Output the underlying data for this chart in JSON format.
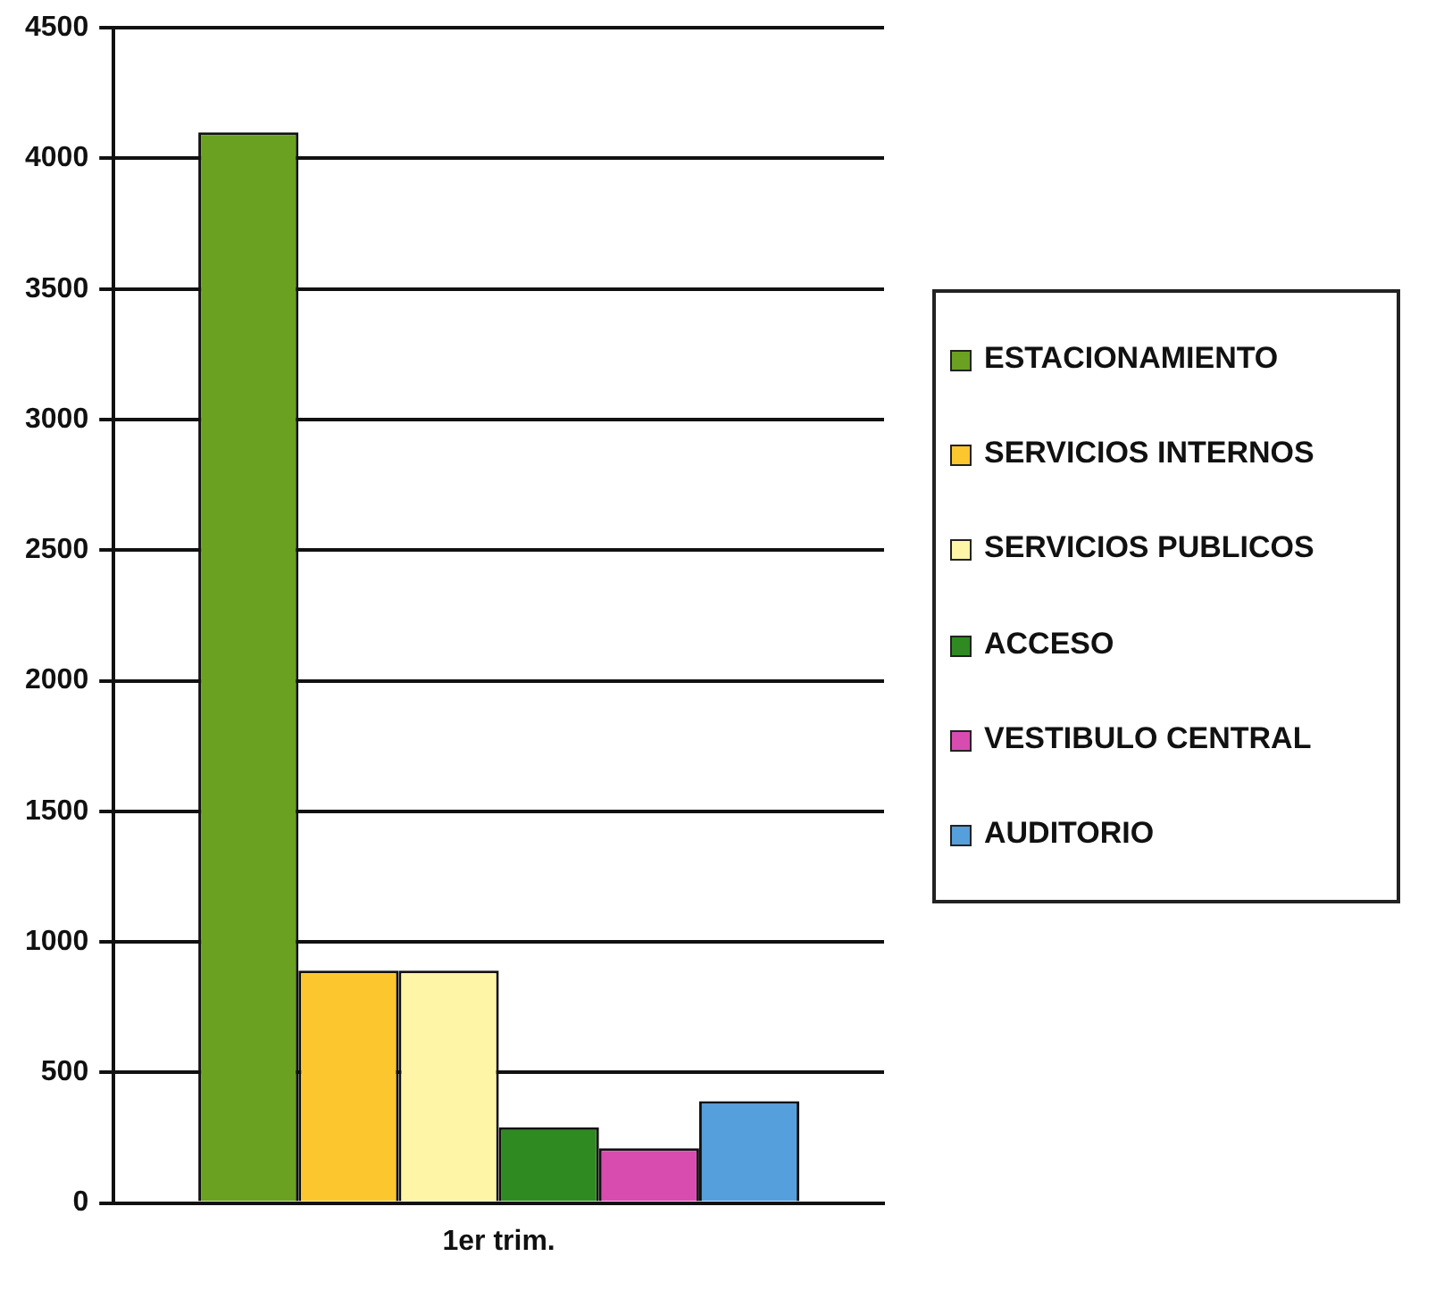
{
  "chart_data": {
    "type": "bar",
    "categories": [
      "1er trim."
    ],
    "series": [
      {
        "name": "ESTACIONAMIENTO",
        "color": "#6aa121",
        "values": [
          4100
        ]
      },
      {
        "name": "SERVICIOS INTERNOS",
        "color": "#fcc72e",
        "values": [
          890
        ]
      },
      {
        "name": "SERVICIOS PUBLICOS",
        "color": "#fff5a6",
        "values": [
          890
        ]
      },
      {
        "name": "ACCESO",
        "color": "#2f8a22",
        "values": [
          290
        ]
      },
      {
        "name": "VESTIBULO CENTRAL",
        "color": "#d84cb0",
        "values": [
          210
        ]
      },
      {
        "name": "AUDITORIO",
        "color": "#559fdc",
        "values": [
          390
        ]
      }
    ],
    "ylim": [
      0,
      4500
    ],
    "yticks": [
      0,
      500,
      1000,
      1500,
      2000,
      2500,
      3000,
      3500,
      4000,
      4500
    ],
    "grid": "y",
    "legend": "right"
  }
}
